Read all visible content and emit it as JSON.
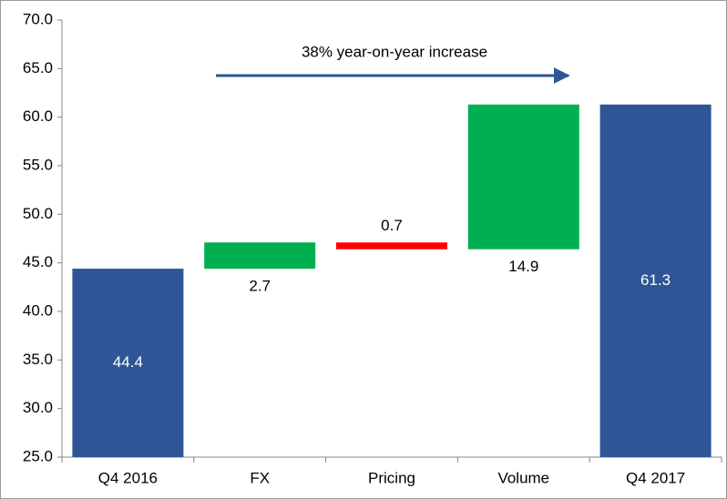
{
  "chart_data": {
    "type": "waterfall",
    "categories": [
      "Q4 2016",
      "FX",
      "Pricing",
      "Volume",
      "Q4 2017"
    ],
    "values": [
      44.4,
      2.7,
      -0.7,
      14.9,
      61.3
    ],
    "value_labels": [
      "44.4",
      "2.7",
      "0.7",
      "14.9",
      "61.3"
    ],
    "measure": [
      "absolute",
      "relative",
      "relative",
      "relative",
      "total"
    ],
    "colors": [
      "#2f5597",
      "#00b050",
      "#ff0000",
      "#00b050",
      "#2f5597"
    ],
    "ylim": [
      25,
      70
    ],
    "yticks": [
      {
        "value": 25,
        "label": "25.0"
      },
      {
        "value": 30,
        "label": "30.0"
      },
      {
        "value": 35,
        "label": "35.0"
      },
      {
        "value": 40,
        "label": "40.0"
      },
      {
        "value": 45,
        "label": "45.0"
      },
      {
        "value": 50,
        "label": "50.0"
      },
      {
        "value": 55,
        "label": "55.0"
      },
      {
        "value": 60,
        "label": "60.0"
      },
      {
        "value": 65,
        "label": "65.0"
      },
      {
        "value": 70,
        "label": "70.0"
      }
    ],
    "annotation": "38% year-on-year increase"
  }
}
